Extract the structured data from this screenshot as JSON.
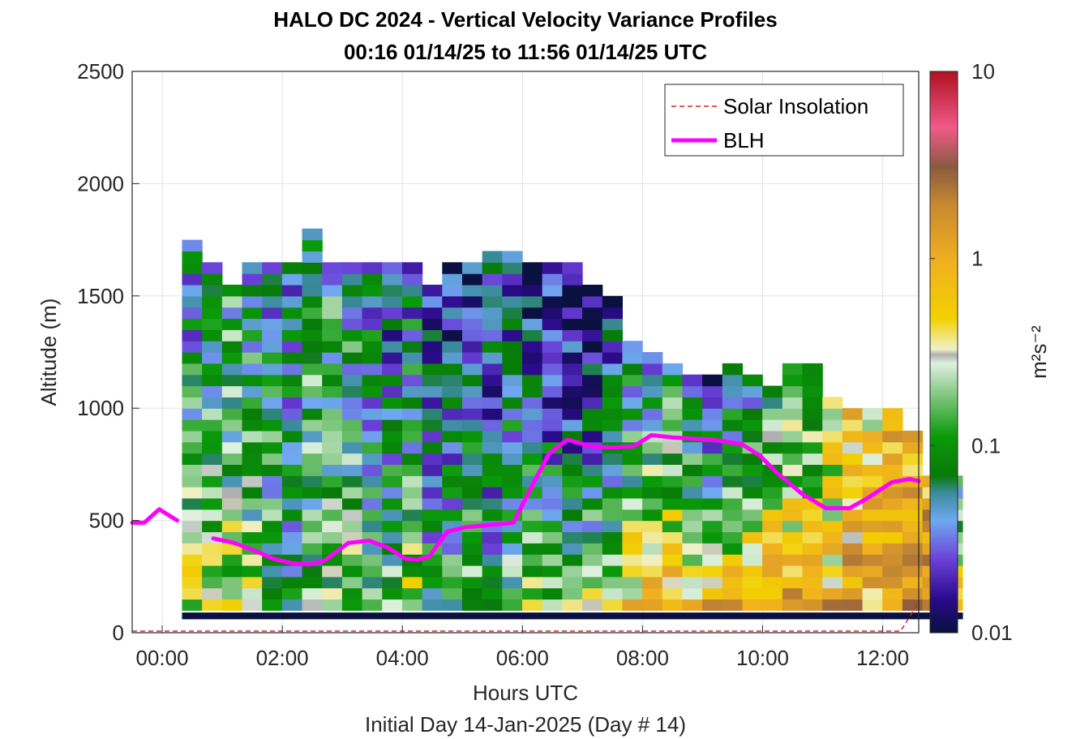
{
  "chart_data": {
    "type": "heatmap",
    "title": "HALO DC 2024 - Vertical Velocity Variance Profiles",
    "subtitle": "00:16 01/14/25 to 11:56 01/14/25  UTC",
    "xlabel": "Hours UTC",
    "xlabel2": "Initial Day 14-Jan-2025 (Day # 14)",
    "ylabel": "Altitude (m)",
    "x_ticks": [
      "00:00",
      "02:00",
      "04:00",
      "06:00",
      "08:00",
      "10:00",
      "12:00"
    ],
    "y_ticks": [
      "0",
      "500",
      "1000",
      "1500",
      "2000",
      "2500"
    ],
    "xlim_hours": [
      -0.5,
      12.6
    ],
    "ylim": [
      0,
      2500
    ],
    "grid": true,
    "colorbar": {
      "scale": "log",
      "range": [
        0.01,
        10
      ],
      "ticks": [
        "0.01",
        "0.1",
        "1",
        "10"
      ],
      "label": "m²s⁻²"
    },
    "legend": {
      "position": "top-right",
      "entries": [
        {
          "label": "Solar Insolation",
          "style": "dashed",
          "color": "#e02020"
        },
        {
          "label": "BLH",
          "style": "solid",
          "color": "#ff00ff"
        }
      ]
    },
    "heatmap": {
      "x_start_hours": 0.33,
      "x_step_hours": 0.3333,
      "y_start_m": 100,
      "y_step_m": 50,
      "max_altitude_per_column_m": [
        1750,
        1650,
        1550,
        1650,
        1650,
        1650,
        1800,
        1650,
        1650,
        1650,
        1650,
        1650,
        1550,
        1650,
        1650,
        1700,
        1700,
        1650,
        1650,
        1650,
        1550,
        1500,
        1300,
        1250,
        1200,
        1150,
        1150,
        1200,
        1150,
        1100,
        1200,
        1200,
        1050,
        1000,
        1000,
        1000,
        900,
        700,
        700
      ],
      "surface_variance_per_column": [
        0.35,
        0.35,
        0.25,
        0.2,
        0.15,
        0.1,
        0.15,
        0.2,
        0.3,
        0.15,
        0.2,
        0.25,
        0.1,
        0.15,
        0.2,
        0.08,
        0.2,
        0.3,
        0.25,
        0.2,
        0.35,
        0.4,
        0.9,
        0.9,
        1.1,
        1.2,
        1.3,
        1.1,
        1.0,
        1.1,
        1.2,
        1.0,
        1.1,
        1.3,
        1.0,
        1.5,
        1.6,
        1.8,
        1.5
      ],
      "upper_variance_per_column": [
        0.04,
        0.05,
        0.08,
        0.06,
        0.05,
        0.04,
        0.08,
        0.07,
        0.05,
        0.04,
        0.03,
        0.04,
        0.03,
        0.02,
        0.02,
        0.025,
        0.03,
        0.02,
        0.015,
        0.012,
        0.013,
        0.02,
        0.04,
        0.05,
        0.06,
        0.03,
        0.02,
        0.04,
        0.06,
        0.1,
        0.12,
        0.1,
        0.2,
        0.5,
        0.5,
        0.6,
        0.6,
        0.8,
        0.06
      ]
    },
    "blh": {
      "x_hours": [
        -0.5,
        -0.3,
        -0.05,
        0.25,
        0.55,
        0.85,
        1.2,
        1.5,
        1.85,
        2.15,
        2.45,
        2.7,
        3.1,
        3.45,
        3.75,
        4.05,
        4.25,
        4.45,
        4.75,
        5.05,
        5.45,
        5.85,
        6.15,
        6.45,
        6.75,
        7.15,
        7.45,
        7.85,
        8.15,
        8.5,
        9.15,
        9.65,
        9.95,
        10.25,
        10.65,
        11.05,
        11.45,
        11.75,
        12.15,
        12.45,
        12.6
      ],
      "y_m": [
        490,
        490,
        550,
        500,
        null,
        420,
        400,
        370,
        330,
        310,
        305,
        320,
        400,
        410,
        380,
        330,
        325,
        340,
        450,
        470,
        480,
        490,
        650,
        800,
        860,
        830,
        825,
        830,
        880,
        870,
        860,
        840,
        790,
        710,
        620,
        555,
        555,
        600,
        670,
        685,
        675
      ]
    },
    "solar_insolation": {
      "x_hours": [
        -0.5,
        12.3,
        12.6
      ],
      "y_m": [
        0,
        0,
        130
      ]
    }
  }
}
